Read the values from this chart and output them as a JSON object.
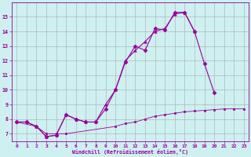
{
  "background_color": "#cef0f0",
  "grid_color": "#aaaaaa",
  "line_color": "#990099",
  "xlim": [
    -0.5,
    23.5
  ],
  "ylim": [
    6.5,
    16.0
  ],
  "xlabel": "Windchill (Refroidissement éolien,°C)",
  "yticks": [
    7,
    8,
    9,
    10,
    11,
    12,
    13,
    14,
    15
  ],
  "xticks": [
    0,
    1,
    2,
    3,
    4,
    5,
    6,
    7,
    8,
    9,
    10,
    11,
    12,
    13,
    14,
    15,
    16,
    17,
    18,
    19,
    20,
    21,
    22,
    23
  ],
  "series": [
    {
      "x": [
        0,
        1,
        2,
        3,
        4,
        5,
        6,
        7,
        8,
        9,
        10,
        11,
        12,
        13,
        14,
        15,
        16,
        17,
        18,
        19,
        20
      ],
      "y": [
        7.8,
        7.8,
        7.5,
        6.8,
        6.9,
        8.3,
        8.0,
        7.8,
        7.8,
        8.7,
        10.0,
        11.9,
        13.0,
        12.7,
        14.2,
        14.1,
        15.3,
        15.3,
        14.0,
        11.8,
        9.8
      ],
      "marker": "D",
      "markersize": 2.5,
      "linewidth": 0.8
    },
    {
      "x": [
        0,
        1,
        2,
        3,
        4,
        5,
        6,
        7,
        8,
        9,
        10,
        11,
        12,
        13,
        14,
        15,
        16,
        17,
        18
      ],
      "y": [
        7.8,
        7.8,
        7.5,
        6.8,
        6.9,
        8.3,
        8.0,
        7.8,
        7.8,
        9.0,
        10.0,
        12.0,
        12.7,
        13.3,
        14.0,
        14.2,
        15.2,
        15.3,
        14.0
      ],
      "marker": "^",
      "markersize": 2.5,
      "linewidth": 0.8
    },
    {
      "x": [
        0,
        2,
        3,
        4,
        5,
        10,
        11,
        12,
        13,
        14,
        15,
        16,
        17,
        18,
        19,
        20,
        21,
        22,
        23
      ],
      "y": [
        7.8,
        7.5,
        7.0,
        7.0,
        7.0,
        7.5,
        7.7,
        7.8,
        8.0,
        8.2,
        8.3,
        8.4,
        8.5,
        8.55,
        8.6,
        8.65,
        8.7,
        8.7,
        8.7
      ],
      "marker": "s",
      "markersize": 1.5,
      "linewidth": 0.6
    }
  ]
}
